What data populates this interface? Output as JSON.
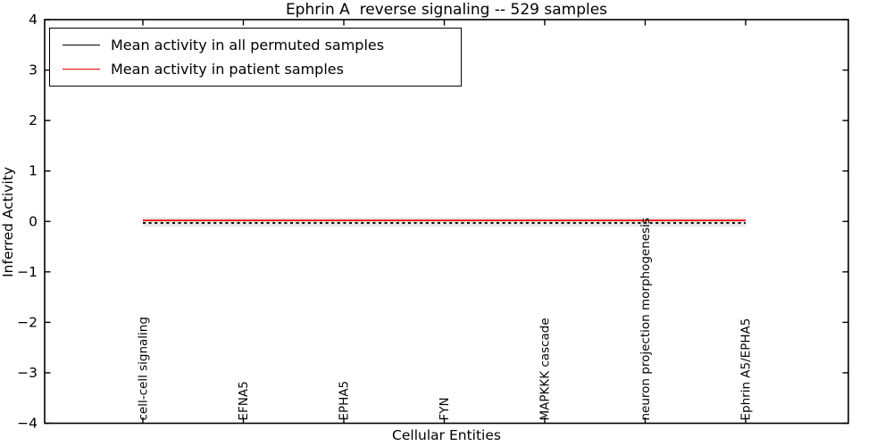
{
  "figure": {
    "background": "#ffffff"
  },
  "chart_data": {
    "type": "line",
    "title": "Ephrin A  reverse signaling -- 529 samples",
    "xlabel": "Cellular Entities",
    "ylabel": "Inferred Activity",
    "ylim": [
      -4,
      4
    ],
    "yticks": [
      4,
      3,
      2,
      1,
      0,
      -1,
      -2,
      -3,
      -4
    ],
    "ytick_labels": [
      "4",
      "3",
      "2",
      "1",
      "0",
      "−1",
      "−2",
      "−3",
      "−4"
    ],
    "categories": [
      "cell-cell signaling",
      "EFNA5",
      "EPHA5",
      "FYN",
      "MAPKKK cascade",
      "neuron projection morphogenesis",
      "Ephrin A5/EPHA5"
    ],
    "series": [
      {
        "name": "Mean activity in all permuted samples",
        "color": "#000000",
        "linestyle": "dashed",
        "values": [
          -0.03,
          -0.03,
          -0.03,
          -0.03,
          -0.03,
          -0.03,
          -0.03
        ]
      },
      {
        "name": "Mean activity in patient samples",
        "color": "#ff0000",
        "linestyle": "solid",
        "values": [
          0.02,
          0.02,
          0.02,
          0.02,
          0.02,
          0.02,
          0.02
        ]
      }
    ],
    "band": {
      "upper": 0.08,
      "lower": -0.1,
      "color": "#e7e7e7"
    },
    "legend_position": "upper left",
    "grid": false,
    "axis_color": "#000000"
  }
}
